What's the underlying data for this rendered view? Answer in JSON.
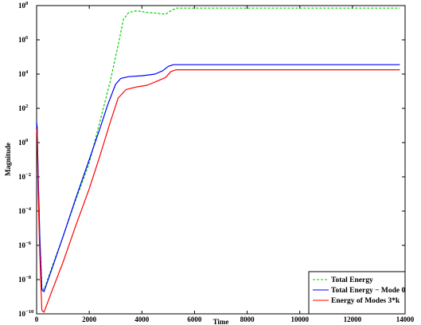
{
  "chart_data": {
    "type": "line",
    "title": "",
    "xlabel": "Time",
    "ylabel": "Magnitude",
    "xlim": [
      0,
      14000
    ],
    "ylim_log10": [
      -10,
      8
    ],
    "yscale": "log",
    "grid": false,
    "legend_position": "bottom-right",
    "x_ticks": [
      0,
      2000,
      4000,
      6000,
      8000,
      10000,
      12000,
      14000
    ],
    "x_tick_labels": [
      "0",
      "2000",
      "4000",
      "6000",
      "8000",
      "10000",
      "12000",
      "14000"
    ],
    "y_tick_exponents": [
      -10,
      -8,
      -6,
      -4,
      -2,
      0,
      2,
      4,
      6,
      8
    ],
    "y_tick_base": "10",
    "y_tick_sups": [
      "−10",
      "−8",
      "−6",
      "−4",
      "−2",
      "0",
      "2",
      "4",
      "6",
      "8"
    ],
    "series": [
      {
        "name": "Total Energy",
        "color": "#00cc00",
        "style": "dashed",
        "x": [
          0,
          20,
          60,
          120,
          200,
          280,
          600,
          1000,
          1500,
          2000,
          2400,
          2800,
          3100,
          3300,
          3500,
          3800,
          4200,
          4600,
          4900,
          5100,
          5300,
          6000,
          8000,
          10000,
          12000,
          13800
        ],
        "y_log10": [
          1.0,
          0.9,
          -2.0,
          -5.5,
          -8.4,
          -8.6,
          -7.2,
          -5.5,
          -3.3,
          -1.2,
          1.2,
          3.6,
          5.7,
          7.2,
          7.6,
          7.7,
          7.6,
          7.55,
          7.5,
          7.7,
          7.85,
          7.85,
          7.85,
          7.85,
          7.85,
          7.85
        ]
      },
      {
        "name": "Total Energy − Mode 0",
        "color": "#0000ff",
        "style": "solid",
        "x": [
          0,
          20,
          60,
          120,
          200,
          280,
          600,
          1000,
          1500,
          2000,
          2400,
          2700,
          3000,
          3200,
          3500,
          4000,
          4500,
          4800,
          5000,
          5200,
          6000,
          8000,
          10000,
          12000,
          13800
        ],
        "y_log10": [
          1.2,
          0.9,
          -2.0,
          -5.5,
          -8.6,
          -8.7,
          -7.3,
          -5.5,
          -3.2,
          -1.0,
          0.8,
          2.2,
          3.4,
          3.75,
          3.85,
          3.9,
          4.0,
          4.2,
          4.45,
          4.55,
          4.55,
          4.55,
          4.55,
          4.55,
          4.55
        ]
      },
      {
        "name": "Energy of Modes 3*k",
        "color": "#ff0000",
        "style": "solid",
        "x": [
          0,
          20,
          60,
          120,
          200,
          280,
          600,
          1000,
          1500,
          2000,
          2400,
          2800,
          3100,
          3400,
          3800,
          4200,
          4600,
          4900,
          5100,
          5300,
          6000,
          8000,
          10000,
          12000,
          13800
        ],
        "y_log10": [
          0.8,
          0.4,
          -3.0,
          -6.5,
          -9.8,
          -9.9,
          -8.6,
          -7.0,
          -4.8,
          -2.7,
          -0.8,
          1.2,
          2.6,
          3.1,
          3.25,
          3.35,
          3.6,
          3.8,
          4.15,
          4.25,
          4.25,
          4.25,
          4.25,
          4.25,
          4.25
        ]
      }
    ]
  }
}
